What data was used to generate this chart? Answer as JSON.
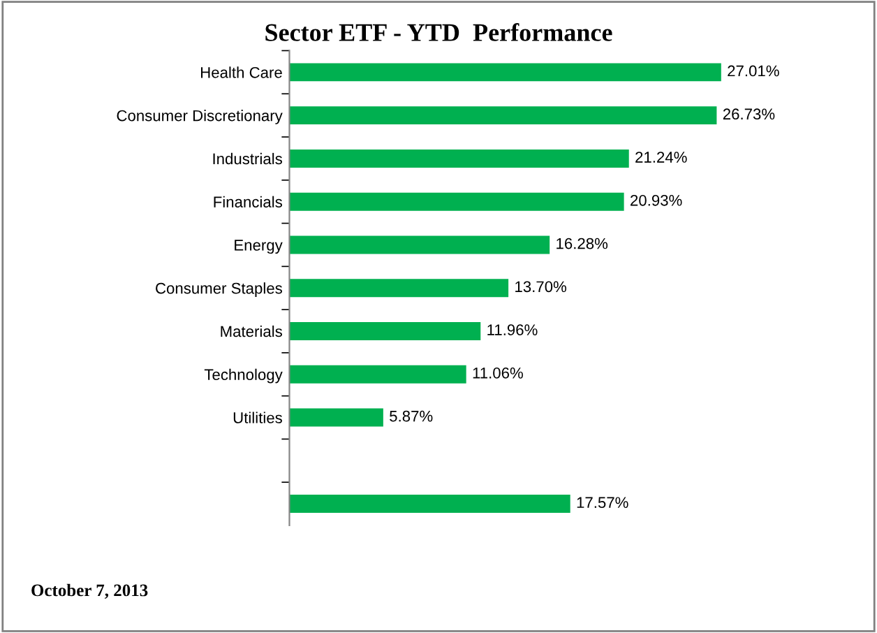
{
  "chart_data": {
    "type": "bar",
    "orientation": "horizontal",
    "title": "Sector ETF - YTD  Performance",
    "categories": [
      "Health Care",
      "Consumer Discretionary",
      "Industrials",
      "Financials",
      "Energy",
      "Consumer Staples",
      "Materials",
      "Technology",
      "Utilities",
      null,
      null
    ],
    "values": [
      27.01,
      26.73,
      21.24,
      20.93,
      16.28,
      13.7,
      11.96,
      11.06,
      5.87,
      null,
      17.57
    ],
    "value_labels": [
      "27.01%",
      "26.73%",
      "21.24%",
      "20.93%",
      "16.28%",
      "13.70%",
      "11.96%",
      "11.06%",
      "5.87%",
      null,
      "17.57%"
    ],
    "color": "#00b050",
    "grid": false,
    "legend": false,
    "annotations": [
      "October 7, 2013"
    ]
  }
}
